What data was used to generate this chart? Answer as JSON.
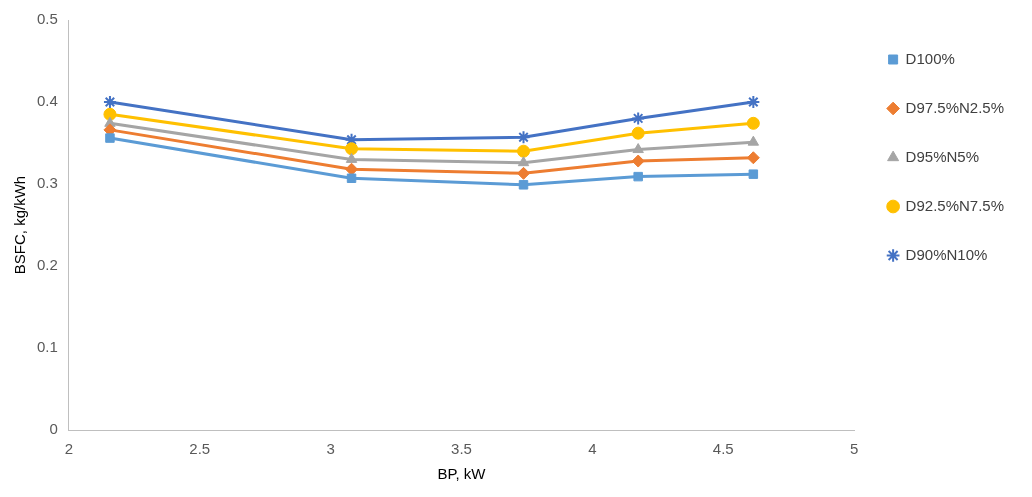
{
  "chart_data": {
    "type": "line",
    "xlabel": "BP, kW",
    "ylabel": "BSFC, kg/kWh",
    "x": [
      2.157,
      3.08,
      3.737,
      4.175,
      4.615
    ],
    "xlim": [
      2,
      5
    ],
    "xticks": [
      2,
      2.5,
      3,
      3.5,
      4,
      4.5,
      5
    ],
    "ylim": [
      0,
      0.5
    ],
    "yticks": [
      0,
      0.1,
      0.2,
      0.3,
      0.4,
      0.5
    ],
    "grid": false,
    "legend": "right",
    "series": [
      {
        "name": "D100%",
        "color": "#5b9bd5",
        "marker": "square",
        "values": [
          0.356,
          0.307,
          0.299,
          0.309,
          0.312
        ]
      },
      {
        "name": "D97.5%N2.5%",
        "color": "#ed7d31",
        "marker": "diamond",
        "values": [
          0.366,
          0.318,
          0.313,
          0.328,
          0.332
        ]
      },
      {
        "name": "D95%N5%",
        "color": "#a5a5a5",
        "marker": "triangle",
        "values": [
          0.374,
          0.33,
          0.326,
          0.342,
          0.351
        ]
      },
      {
        "name": "D92.5%N7.5%",
        "color": "#ffc000",
        "marker": "circle",
        "values": [
          0.385,
          0.343,
          0.34,
          0.362,
          0.374
        ]
      },
      {
        "name": "D90%N10%",
        "color": "#4472c4",
        "marker": "cross",
        "values": [
          0.4,
          0.354,
          0.357,
          0.38,
          0.4
        ]
      }
    ]
  }
}
